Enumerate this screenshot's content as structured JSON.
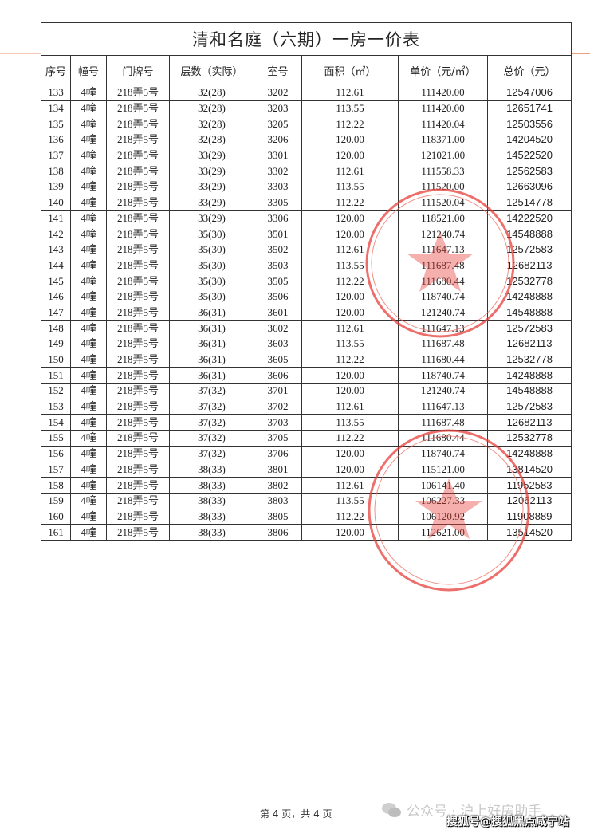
{
  "document": {
    "title": "清和名庭（六期）一房一价表",
    "columns": [
      "序号",
      "幢号",
      "门牌号",
      "层数（实际）",
      "室号",
      "面积（㎡）",
      "单价（元/㎡）",
      "总价（元）"
    ],
    "rows": [
      [
        "133",
        "4幢",
        "218弄5号",
        "32(28)",
        "3202",
        "112.61",
        "111420.00",
        "12547006"
      ],
      [
        "134",
        "4幢",
        "218弄5号",
        "32(28)",
        "3203",
        "113.55",
        "111420.00",
        "12651741"
      ],
      [
        "135",
        "4幢",
        "218弄5号",
        "32(28)",
        "3205",
        "112.22",
        "111420.04",
        "12503556"
      ],
      [
        "136",
        "4幢",
        "218弄5号",
        "32(28)",
        "3206",
        "120.00",
        "118371.00",
        "14204520"
      ],
      [
        "137",
        "4幢",
        "218弄5号",
        "33(29)",
        "3301",
        "120.00",
        "121021.00",
        "14522520"
      ],
      [
        "138",
        "4幢",
        "218弄5号",
        "33(29)",
        "3302",
        "112.61",
        "111558.33",
        "12562583"
      ],
      [
        "139",
        "4幢",
        "218弄5号",
        "33(29)",
        "3303",
        "113.55",
        "111520.00",
        "12663096"
      ],
      [
        "140",
        "4幢",
        "218弄5号",
        "33(29)",
        "3305",
        "112.22",
        "111520.04",
        "12514778"
      ],
      [
        "141",
        "4幢",
        "218弄5号",
        "33(29)",
        "3306",
        "120.00",
        "118521.00",
        "14222520"
      ],
      [
        "142",
        "4幢",
        "218弄5号",
        "35(30)",
        "3501",
        "120.00",
        "121240.74",
        "14548888"
      ],
      [
        "143",
        "4幢",
        "218弄5号",
        "35(30)",
        "3502",
        "112.61",
        "111647.13",
        "12572583"
      ],
      [
        "144",
        "4幢",
        "218弄5号",
        "35(30)",
        "3503",
        "113.55",
        "111687.48",
        "12682113"
      ],
      [
        "145",
        "4幢",
        "218弄5号",
        "35(30)",
        "3505",
        "112.22",
        "111680.44",
        "12532778"
      ],
      [
        "146",
        "4幢",
        "218弄5号",
        "35(30)",
        "3506",
        "120.00",
        "118740.74",
        "14248888"
      ],
      [
        "147",
        "4幢",
        "218弄5号",
        "36(31)",
        "3601",
        "120.00",
        "121240.74",
        "14548888"
      ],
      [
        "148",
        "4幢",
        "218弄5号",
        "36(31)",
        "3602",
        "112.61",
        "111647.13",
        "12572583"
      ],
      [
        "149",
        "4幢",
        "218弄5号",
        "36(31)",
        "3603",
        "113.55",
        "111687.48",
        "12682113"
      ],
      [
        "150",
        "4幢",
        "218弄5号",
        "36(31)",
        "3605",
        "112.22",
        "111680.44",
        "12532778"
      ],
      [
        "151",
        "4幢",
        "218弄5号",
        "36(31)",
        "3606",
        "120.00",
        "118740.74",
        "14248888"
      ],
      [
        "152",
        "4幢",
        "218弄5号",
        "37(32)",
        "3701",
        "120.00",
        "121240.74",
        "14548888"
      ],
      [
        "153",
        "4幢",
        "218弄5号",
        "37(32)",
        "3702",
        "112.61",
        "111647.13",
        "12572583"
      ],
      [
        "154",
        "4幢",
        "218弄5号",
        "37(32)",
        "3703",
        "113.55",
        "111687.48",
        "12682113"
      ],
      [
        "155",
        "4幢",
        "218弄5号",
        "37(32)",
        "3705",
        "112.22",
        "111680.44",
        "12532778"
      ],
      [
        "156",
        "4幢",
        "218弄5号",
        "37(32)",
        "3706",
        "120.00",
        "118740.74",
        "14248888"
      ],
      [
        "157",
        "4幢",
        "218弄5号",
        "38(33)",
        "3801",
        "120.00",
        "115121.00",
        "13814520"
      ],
      [
        "158",
        "4幢",
        "218弄5号",
        "38(33)",
        "3802",
        "112.61",
        "106141.40",
        "11952583"
      ],
      [
        "159",
        "4幢",
        "218弄5号",
        "38(33)",
        "3803",
        "113.55",
        "106227.33",
        "12062113"
      ],
      [
        "160",
        "4幢",
        "218弄5号",
        "38(33)",
        "3805",
        "112.22",
        "106120.92",
        "11908889"
      ],
      [
        "161",
        "4幢",
        "218弄5号",
        "38(33)",
        "3806",
        "120.00",
        "112621.00",
        "13514520"
      ]
    ]
  },
  "footer": {
    "page": "第 4 页，共 4 页"
  },
  "watermarks": {
    "wechat": "公众号 · 沪上好房助手",
    "sohu": "搜狐号@搜狐黑点咸宁站",
    "icon": "wechat-icon"
  },
  "colors": {
    "stamp": "#e8403a"
  }
}
